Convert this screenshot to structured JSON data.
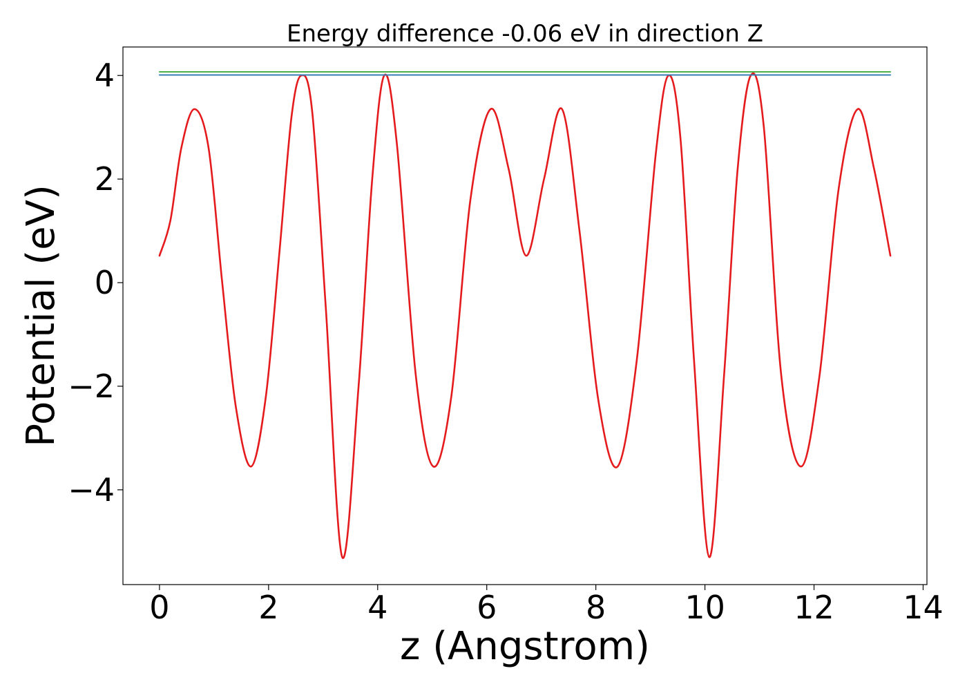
{
  "chart_data": {
    "type": "line",
    "title": "Energy difference -0.06 eV in direction Z",
    "xlabel": "z (Angstrom)",
    "ylabel": "Potential (eV)",
    "xlim": [
      -0.67,
      14.07
    ],
    "ylim": [
      -5.83,
      4.55
    ],
    "xticks": [
      0,
      2,
      4,
      6,
      8,
      10,
      12,
      14
    ],
    "yticks": [
      4,
      2,
      0,
      -2,
      -4
    ],
    "xtick_labels": [
      "0",
      "2",
      "4",
      "6",
      "8",
      "10",
      "12",
      "14"
    ],
    "ytick_labels": [
      "4",
      "2",
      "0",
      "−2",
      "−4"
    ],
    "grid": false,
    "legend": "none",
    "series": [
      {
        "color": "#e41a1c",
        "x": [
          0.0,
          0.2,
          0.4,
          0.64,
          0.9,
          1.15,
          1.4,
          1.68,
          1.95,
          2.2,
          2.42,
          2.6,
          2.8,
          3.05,
          3.35,
          3.65,
          3.9,
          4.12,
          4.35,
          4.7,
          5.02,
          5.35,
          5.7,
          6.07,
          6.4,
          6.72,
          7.05,
          7.38,
          7.7,
          8.05,
          8.4,
          8.75,
          9.1,
          9.33,
          9.55,
          9.8,
          10.08,
          10.35,
          10.6,
          10.84,
          11.08,
          11.4,
          11.76,
          12.1,
          12.45,
          12.8,
          13.1,
          13.4
        ],
        "y": [
          0.52,
          1.2,
          2.6,
          3.35,
          2.6,
          0.0,
          -2.4,
          -3.55,
          -2.2,
          0.6,
          3.2,
          4.0,
          3.3,
          -0.5,
          -5.3,
          -2.0,
          2.0,
          4.0,
          2.7,
          -1.8,
          -3.55,
          -2.2,
          1.6,
          3.35,
          2.2,
          0.52,
          2.0,
          3.35,
          1.0,
          -2.3,
          -3.55,
          -1.5,
          2.5,
          4.0,
          2.8,
          -1.5,
          -5.3,
          -1.8,
          2.2,
          4.0,
          3.0,
          -1.8,
          -3.55,
          -1.8,
          1.8,
          3.35,
          2.2,
          0.52
        ]
      },
      {
        "color": "#377eb8",
        "x": [
          0.0,
          13.4
        ],
        "y": [
          4.01,
          4.01
        ]
      },
      {
        "color": "#4daf4a",
        "x": [
          0.0,
          13.4
        ],
        "y": [
          4.07,
          4.07
        ]
      }
    ]
  }
}
